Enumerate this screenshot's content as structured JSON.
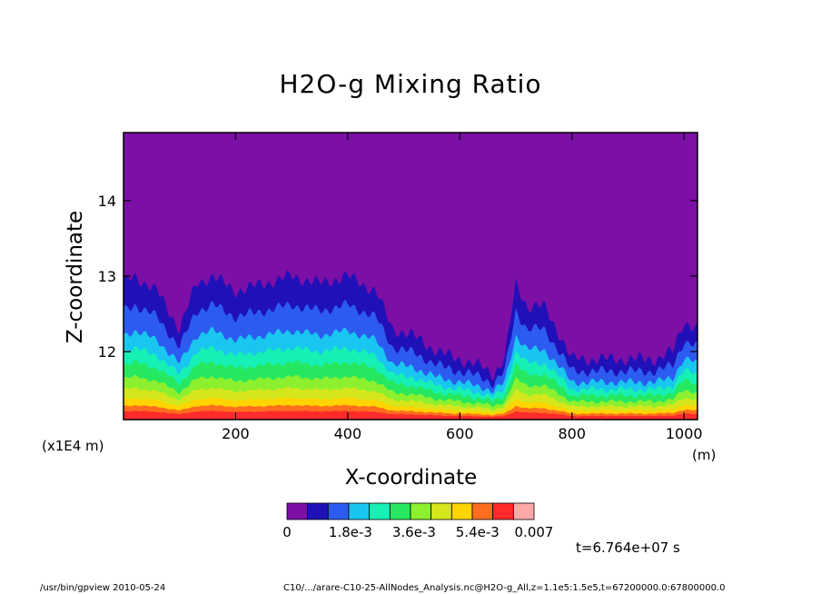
{
  "chart_data": {
    "type": "heatmap",
    "title": "H2O-g Mixing Ratio",
    "xlabel": "X-coordinate",
    "ylabel": "Z-coordinate",
    "x_unit": "(m)",
    "y_scale_label": "(x1E4 m)",
    "xlim": [
      0,
      1024
    ],
    "ylim": [
      11.1,
      14.9
    ],
    "x_ticks": [
      200,
      400,
      600,
      800,
      1000
    ],
    "y_ticks": [
      12,
      13,
      14
    ],
    "colorbar": {
      "colors": [
        "#7b0fa6",
        "#1f10b8",
        "#2c5bf0",
        "#19c6ef",
        "#16f0b4",
        "#26e860",
        "#8cf02e",
        "#d6e61c",
        "#ffd400",
        "#ff6e1e",
        "#ff2a2a",
        "#ffa8a8"
      ],
      "tick_labels": [
        "0",
        "1.8e-3",
        "3.6e-3",
        "5.4e-3",
        "0.007"
      ],
      "tick_values": [
        0,
        0.0018,
        0.0036,
        0.0054,
        0.007
      ]
    },
    "moist_layer_top": {
      "x": [
        0,
        20,
        60,
        100,
        130,
        160,
        200,
        250,
        300,
        350,
        400,
        450,
        480,
        520,
        560,
        600,
        640,
        660,
        680,
        700,
        720,
        750,
        780,
        800,
        850,
        900,
        950,
        980,
        1000,
        1024
      ],
      "z": [
        12.9,
        13.0,
        12.8,
        12.3,
        12.9,
        13.0,
        12.8,
        12.9,
        13.0,
        12.9,
        13.0,
        12.8,
        12.3,
        12.2,
        12.0,
        11.9,
        11.8,
        11.7,
        11.9,
        12.9,
        12.6,
        12.6,
        12.2,
        11.9,
        11.9,
        11.9,
        11.9,
        12.0,
        12.4,
        12.3
      ]
    }
  },
  "annotations": {
    "time": "t=6.764e+07 s",
    "footer_left": "/usr/bin/gpview  2010-05-24",
    "footer_right": "C10/.../arare-C10-25-AllNodes_Analysis.nc@H2O-g_All,z=1.1e5:1.5e5,t=67200000.0:67800000.0"
  }
}
